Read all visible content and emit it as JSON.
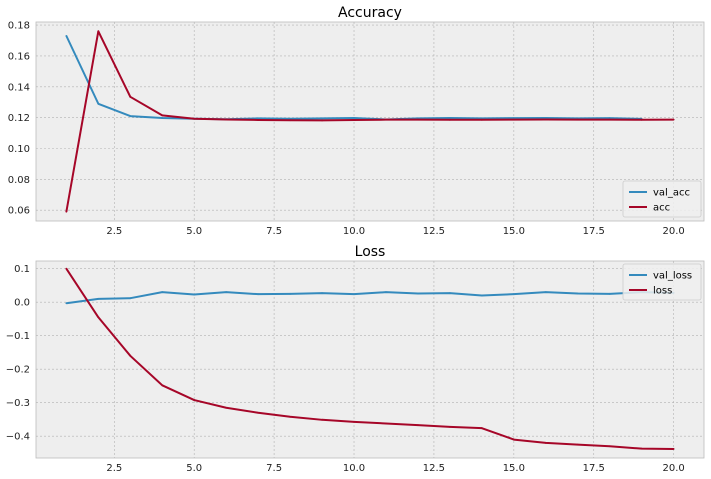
{
  "chart_data": [
    {
      "type": "line",
      "title": "Accuracy",
      "xlabel": "",
      "ylabel": "",
      "xlim": [
        0.05,
        20.95
      ],
      "ylim": [
        0.053,
        0.182
      ],
      "xticks": [
        2.5,
        5.0,
        7.5,
        10.0,
        12.5,
        15.0,
        17.5,
        20.0
      ],
      "xtick_labels": [
        "2.5",
        "5.0",
        "7.5",
        "10.0",
        "12.5",
        "15.0",
        "17.5",
        "20.0"
      ],
      "yticks": [
        0.06,
        0.08,
        0.1,
        0.12,
        0.14,
        0.16,
        0.18
      ],
      "ytick_labels": [
        "0.06",
        "0.08",
        "0.10",
        "0.12",
        "0.14",
        "0.16",
        "0.18"
      ],
      "grid": true,
      "legend_position": "lower-right",
      "series": [
        {
          "name": "val_acc",
          "color": "#348ABD",
          "x": [
            1,
            2,
            3,
            4,
            5,
            6,
            7,
            8,
            9,
            10,
            11,
            12,
            13,
            14,
            15,
            16,
            17,
            18,
            19
          ],
          "y": [
            0.173,
            0.129,
            0.121,
            0.1198,
            0.1193,
            0.119,
            0.1195,
            0.1193,
            0.1195,
            0.1198,
            0.1188,
            0.1195,
            0.1198,
            0.1195,
            0.1197,
            0.1198,
            0.1195,
            0.1197,
            0.1192
          ]
        },
        {
          "name": "acc",
          "color": "#A60628",
          "x": [
            1,
            2,
            3,
            4,
            5,
            6,
            7,
            8,
            9,
            10,
            11,
            12,
            13,
            14,
            15,
            16,
            17,
            18,
            19,
            20
          ],
          "y": [
            0.059,
            0.176,
            0.1335,
            0.1215,
            0.1193,
            0.1188,
            0.1185,
            0.1183,
            0.1182,
            0.1185,
            0.1187,
            0.1187,
            0.1186,
            0.1186,
            0.1187,
            0.1188,
            0.1187,
            0.1187,
            0.1186,
            0.1187
          ]
        }
      ]
    },
    {
      "type": "line",
      "title": "Loss",
      "xlabel": "",
      "ylabel": "",
      "xlim": [
        0.05,
        20.95
      ],
      "ylim": [
        -0.465,
        0.123
      ],
      "xticks": [
        2.5,
        5.0,
        7.5,
        10.0,
        12.5,
        15.0,
        17.5,
        20.0
      ],
      "xtick_labels": [
        "2.5",
        "5.0",
        "7.5",
        "10.0",
        "12.5",
        "15.0",
        "17.5",
        "20.0"
      ],
      "yticks": [
        -0.4,
        -0.3,
        -0.2,
        -0.1,
        0.0,
        0.1
      ],
      "ytick_labels": [
        "−0.4",
        "−0.3",
        "−0.2",
        "−0.1",
        "0.0",
        "0.1"
      ],
      "grid": true,
      "legend_position": "upper-right",
      "series": [
        {
          "name": "val_loss",
          "color": "#348ABD",
          "x": [
            1,
            2,
            3,
            4,
            5,
            6,
            7,
            8,
            9,
            10,
            11,
            12,
            13,
            14,
            15,
            16,
            17,
            18,
            19,
            20
          ],
          "y": [
            -0.003,
            0.01,
            0.012,
            0.03,
            0.023,
            0.03,
            0.024,
            0.025,
            0.027,
            0.024,
            0.03,
            0.026,
            0.027,
            0.02,
            0.024,
            0.03,
            0.026,
            0.025,
            0.03,
            0.028
          ]
        },
        {
          "name": "loss",
          "color": "#A60628",
          "x": [
            1,
            2,
            3,
            4,
            5,
            6,
            7,
            8,
            9,
            10,
            11,
            12,
            13,
            14,
            15,
            16,
            17,
            18,
            19,
            20
          ],
          "y": [
            0.1,
            -0.045,
            -0.16,
            -0.248,
            -0.292,
            -0.315,
            -0.33,
            -0.342,
            -0.351,
            -0.357,
            -0.362,
            -0.367,
            -0.372,
            -0.376,
            -0.41,
            -0.42,
            -0.425,
            -0.43,
            -0.437,
            -0.438
          ]
        }
      ]
    }
  ]
}
